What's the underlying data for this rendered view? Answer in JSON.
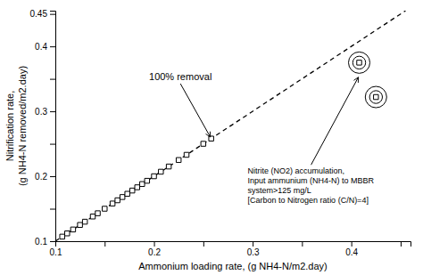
{
  "chart_data": {
    "type": "scatter",
    "xlabel": "Ammonium loading rate, (g NH4-N/m2.day)",
    "ylabel": "Nitrification rate,\n(g NH4-N removed/m2.day)",
    "xlim": [
      0.1,
      0.46
    ],
    "ylim": [
      0.1,
      0.455
    ],
    "xticks": [
      0.1,
      {
        "value": 0.15,
        "label": null
      },
      0.2,
      {
        "value": 0.25,
        "label": null
      },
      0.3,
      {
        "value": 0.35,
        "label": null
      },
      0.4,
      {
        "value": 0.45,
        "label": null
      }
    ],
    "yticks": [
      0.1,
      {
        "value": 0.15,
        "label": null
      },
      0.2,
      {
        "value": 0.25,
        "label": null
      },
      0.3,
      {
        "value": 0.35,
        "label": null
      },
      0.4,
      0.45
    ],
    "series": [
      {
        "type": "line",
        "line_style": "dashed",
        "color": "#000000",
        "x": [
          0.1,
          0.455
        ],
        "values": [
          0.1,
          0.455
        ]
      },
      {
        "type": "scatter",
        "marker": "square",
        "color": "#000000",
        "x": [
          0.107,
          0.112,
          0.118,
          0.125,
          0.13,
          0.138,
          0.143,
          0.15,
          0.158,
          0.163,
          0.168,
          0.173,
          0.178,
          0.183,
          0.188,
          0.193,
          0.2,
          0.207,
          0.215,
          0.225,
          0.233,
          0.25,
          0.258
        ],
        "values": [
          0.107,
          0.112,
          0.118,
          0.125,
          0.13,
          0.138,
          0.143,
          0.15,
          0.158,
          0.163,
          0.168,
          0.173,
          0.178,
          0.183,
          0.188,
          0.193,
          0.2,
          0.207,
          0.215,
          0.225,
          0.233,
          0.25,
          0.258
        ]
      },
      {
        "type": "scatter",
        "marker": "circled-square",
        "color": "#000000",
        "x": [
          0.408,
          0.425
        ],
        "values": [
          0.375,
          0.322
        ]
      }
    ],
    "annotations": [
      {
        "text": "100% removal",
        "xy": [
          0.258,
          0.258
        ],
        "xytext": [
          0.195,
          0.345
        ]
      },
      {
        "text": "Nitrite (NO2) accumulation,\nInput ammunium (NH4-N) to MBBR\nsystem>125 mg/L\n[Carbon to Nitrogen ratio (C/N)=4]",
        "xy": [
          0.408,
          0.355
        ],
        "xytext": [
          0.295,
          0.215
        ]
      }
    ]
  }
}
